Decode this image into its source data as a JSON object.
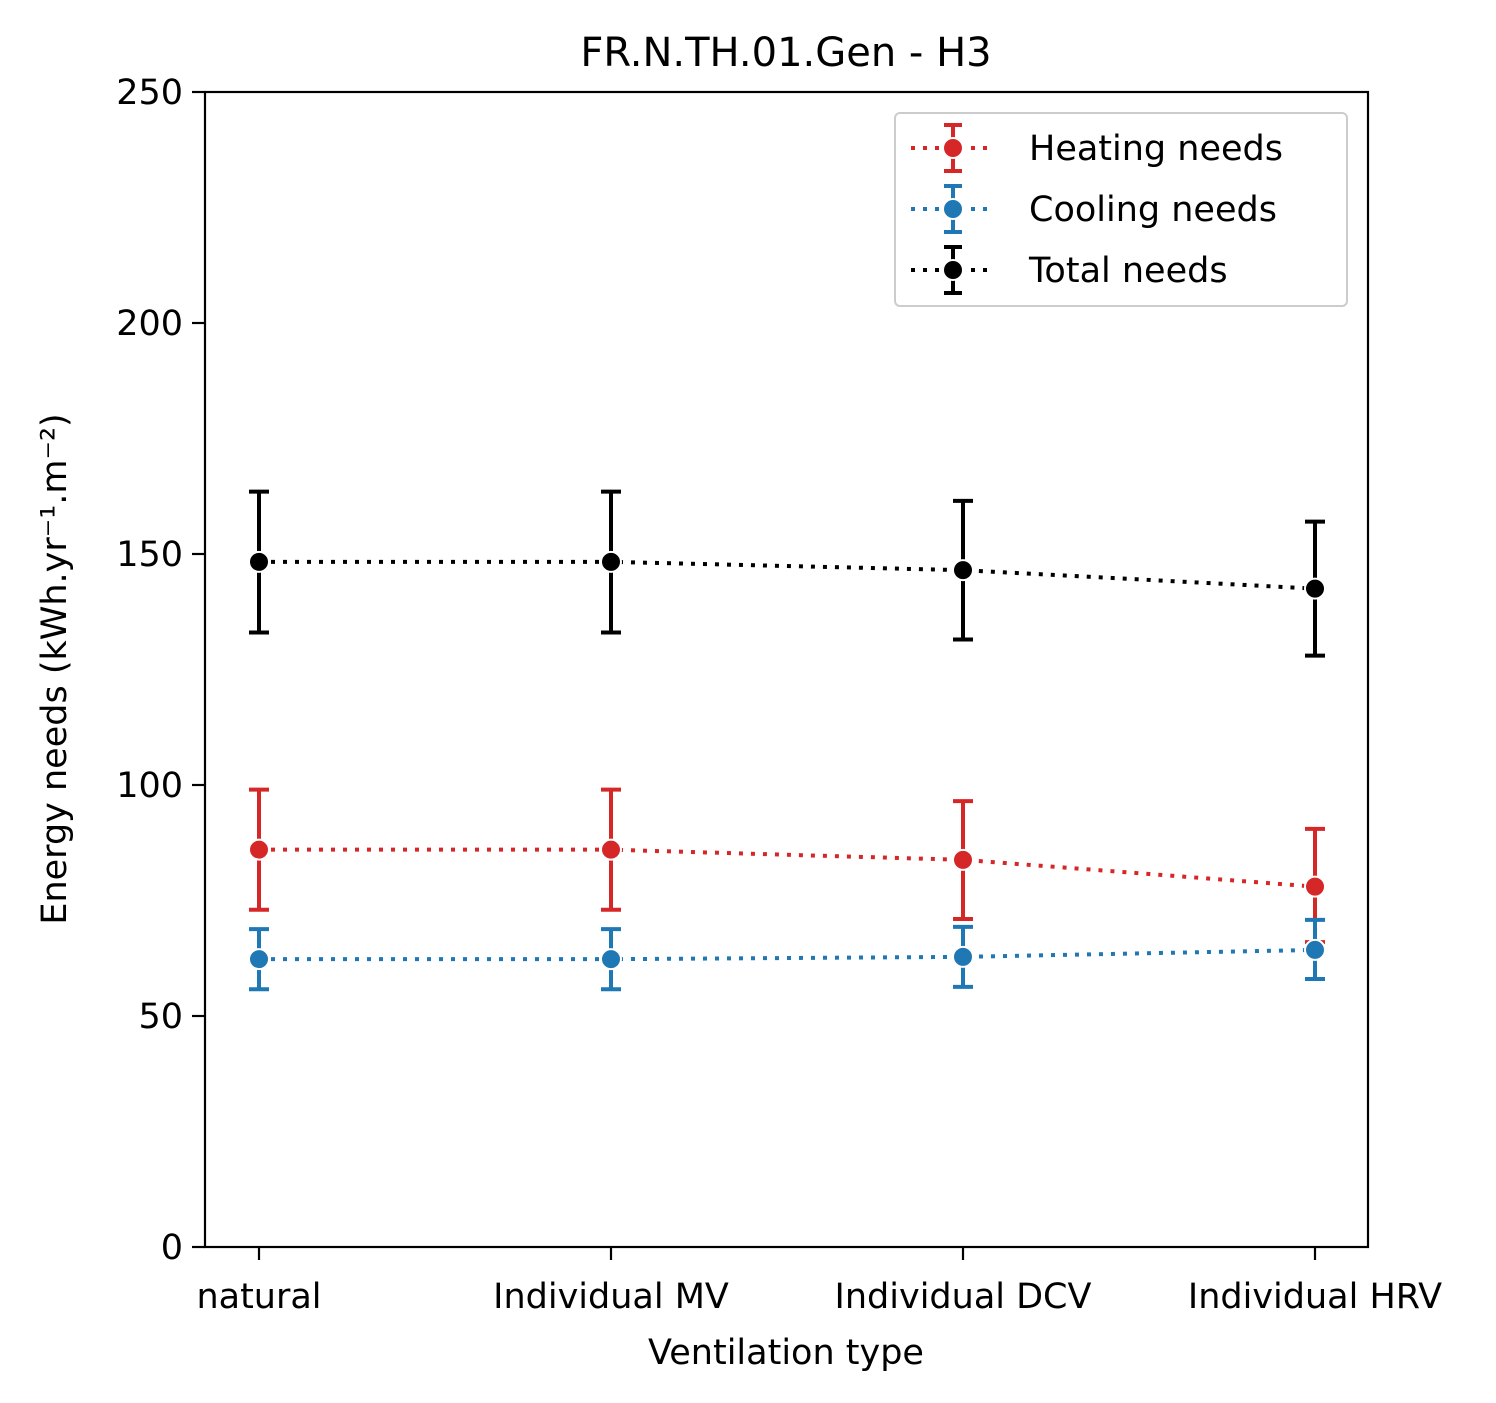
{
  "chart_data": {
    "type": "line",
    "title": "FR.N.TH.01.Gen - H3",
    "xlabel": "Ventilation type",
    "ylabel": "Energy needs (kWh.yr⁻¹.m⁻²)",
    "categories": [
      "natural",
      "Individual MV",
      "Individual DCV",
      "Individual HRV"
    ],
    "ylim": [
      0,
      250
    ],
    "yticks": [
      "0",
      "50",
      "100",
      "150",
      "200",
      "250"
    ],
    "grid": false,
    "legend_position": "top-right",
    "line_style": "dotted",
    "error_bars": true,
    "series": [
      {
        "name": "Heating needs",
        "color": "#d62728",
        "values": [
          86,
          86,
          83.8,
          78
        ],
        "error_low": [
          73,
          73,
          71,
          66
        ],
        "error_high": [
          99,
          99,
          96.5,
          90.5
        ]
      },
      {
        "name": "Cooling needs",
        "color": "#1f77b4",
        "values": [
          62.3,
          62.3,
          62.8,
          64.3
        ],
        "error_low": [
          55.8,
          55.8,
          56.3,
          58
        ],
        "error_high": [
          68.8,
          68.8,
          69.3,
          70.8
        ]
      },
      {
        "name": "Total needs",
        "color": "#000000",
        "values": [
          148.3,
          148.3,
          146.5,
          142.5
        ],
        "error_low": [
          133,
          133,
          131.5,
          128
        ],
        "error_high": [
          163.5,
          163.5,
          161.5,
          157
        ]
      }
    ]
  }
}
